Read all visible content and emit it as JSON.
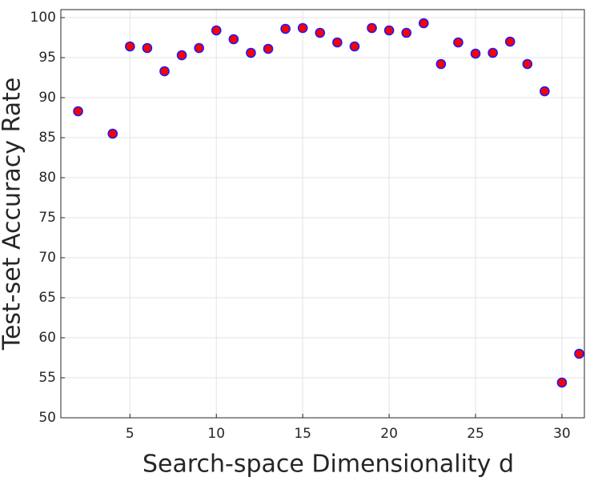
{
  "chart_data": {
    "type": "scatter",
    "xlabel": "Search-space Dimensionality d",
    "ylabel": "Test-set Accuracy Rate",
    "x": [
      2,
      4,
      5,
      6,
      7,
      8,
      9,
      10,
      11,
      12,
      13,
      14,
      15,
      16,
      17,
      18,
      19,
      20,
      21,
      22,
      23,
      24,
      25,
      26,
      27,
      28,
      29,
      30,
      31
    ],
    "values": [
      88.3,
      85.5,
      96.4,
      96.2,
      93.3,
      95.3,
      96.2,
      98.4,
      97.3,
      95.6,
      96.1,
      98.6,
      98.7,
      98.1,
      96.9,
      96.4,
      98.7,
      98.4,
      98.1,
      99.3,
      94.2,
      96.9,
      95.5,
      95.6,
      97.0,
      94.2,
      90.8,
      54.4,
      58.0
    ],
    "color": "#ff0000",
    "edgecolor": "#1a1aff",
    "xlim": [
      1,
      31.3
    ],
    "xticks": [
      5,
      10,
      15,
      20,
      25,
      30
    ],
    "ylim": [
      50,
      101
    ],
    "yticks": [
      50,
      55,
      60,
      65,
      70,
      75,
      80,
      85,
      90,
      95,
      100
    ],
    "grid": true
  }
}
